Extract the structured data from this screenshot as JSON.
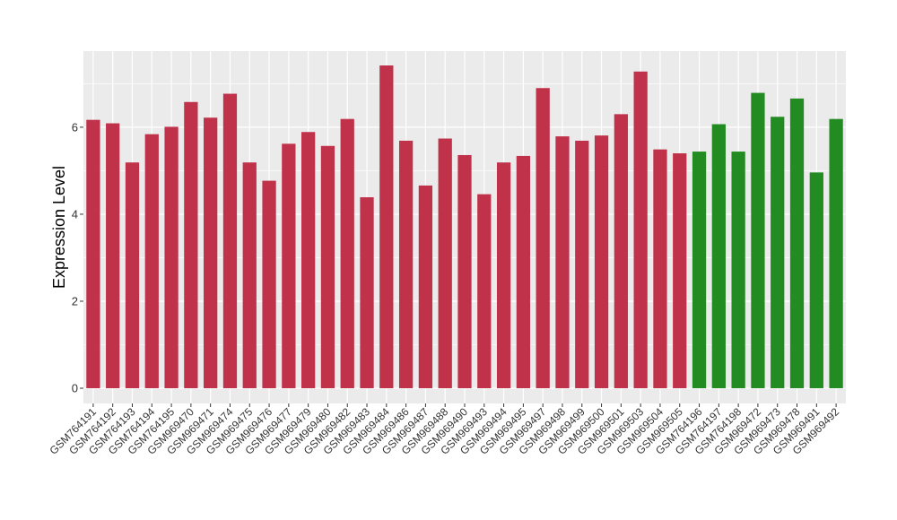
{
  "chart_data": {
    "type": "bar",
    "title": "",
    "xlabel": "",
    "ylabel": "Expression Level",
    "ylim": [
      -0.35,
      7.75
    ],
    "yticks": [
      0,
      2,
      4,
      6
    ],
    "grid": true,
    "legend": "none",
    "colors": {
      "group1": "#c0314a",
      "group2": "#228b22",
      "panel": "#ebebeb",
      "grid": "#ffffff"
    },
    "categories": [
      "GSM764191",
      "GSM764192",
      "GSM764193",
      "GSM764194",
      "GSM764195",
      "GSM969470",
      "GSM969471",
      "GSM969474",
      "GSM969475",
      "GSM969476",
      "GSM969477",
      "GSM969479",
      "GSM969480",
      "GSM969482",
      "GSM969483",
      "GSM969484",
      "GSM969486",
      "GSM969487",
      "GSM969488",
      "GSM969490",
      "GSM969493",
      "GSM969494",
      "GSM969495",
      "GSM969497",
      "GSM969498",
      "GSM969499",
      "GSM969500",
      "GSM969501",
      "GSM969503",
      "GSM969504",
      "GSM969505",
      "GSM764196",
      "GSM764197",
      "GSM764198",
      "GSM969472",
      "GSM969473",
      "GSM969478",
      "GSM969491",
      "GSM969492"
    ],
    "values": [
      6.17,
      6.09,
      5.19,
      5.84,
      6.01,
      6.58,
      6.22,
      6.77,
      5.19,
      4.77,
      5.62,
      5.89,
      5.57,
      6.19,
      4.39,
      7.42,
      5.69,
      4.66,
      5.74,
      5.36,
      4.46,
      5.19,
      5.34,
      6.9,
      5.79,
      5.69,
      5.81,
      6.3,
      7.28,
      5.49,
      5.4,
      5.44,
      6.07,
      5.44,
      6.79,
      6.24,
      6.66,
      4.96,
      6.19
    ],
    "groups": [
      1,
      1,
      1,
      1,
      1,
      1,
      1,
      1,
      1,
      1,
      1,
      1,
      1,
      1,
      1,
      1,
      1,
      1,
      1,
      1,
      1,
      1,
      1,
      1,
      1,
      1,
      1,
      1,
      1,
      1,
      1,
      2,
      2,
      2,
      2,
      2,
      2,
      2,
      2
    ]
  }
}
